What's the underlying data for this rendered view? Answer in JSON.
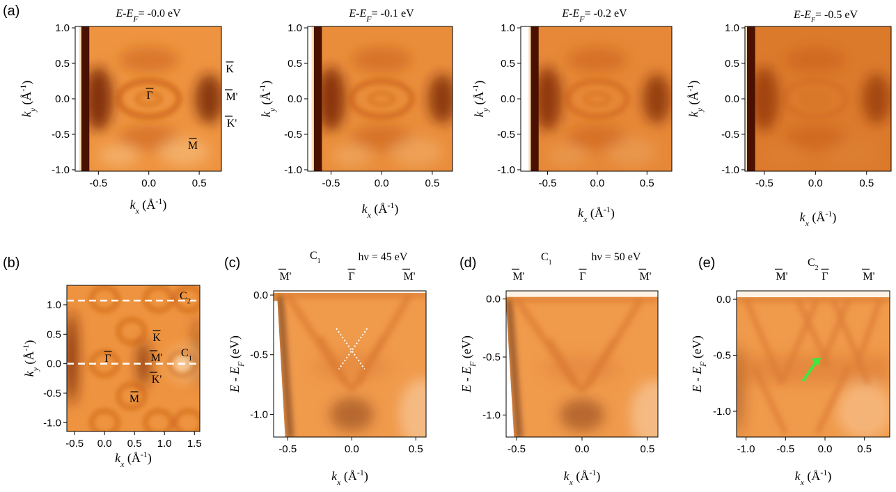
{
  "panel_labels": [
    "(a)",
    "(b)",
    "(c)",
    "(d)",
    "(e)"
  ],
  "chart_data": [
    {
      "type": "heatmap",
      "title": [
        "E",
        "-",
        "E",
        "F",
        "= -0.0 eV"
      ],
      "xlabel": [
        "k",
        "x",
        " (Å",
        "-1",
        ")"
      ],
      "ylabel": [
        "k",
        "y",
        " (Å",
        "-1",
        ")"
      ],
      "xlim": [
        -0.73,
        0.72
      ],
      "ylim": [
        -1.02,
        1.02
      ],
      "xticks": [
        -0.5,
        {
          "value": 0,
          "label": "0.0"
        },
        0.5
      ],
      "yticks": [
        {
          "value": -1,
          "label": "-1.0"
        },
        -0.5,
        {
          "value": 0,
          "label": "0.0"
        },
        0.5,
        {
          "value": 1,
          "label": "1.0"
        }
      ],
      "symmetry_points": [
        "Γ",
        "K",
        "M'",
        "K'",
        "M"
      ]
    },
    {
      "type": "heatmap",
      "title": [
        "E",
        "-",
        "E",
        "F",
        "= -0.1 eV"
      ],
      "xlabel": [
        "k",
        "x",
        " (Å",
        "-1",
        ")"
      ],
      "ylabel": [
        "k",
        "y",
        " (Å",
        "-1",
        ")"
      ],
      "xlim": [
        -0.73,
        0.7
      ],
      "ylim": [
        -1.02,
        1.02
      ],
      "xticks": [
        -0.5,
        {
          "value": 0,
          "label": "0.0"
        },
        0.5
      ],
      "yticks": [
        {
          "value": -1,
          "label": "-1.0"
        },
        -0.5,
        {
          "value": 0,
          "label": "0.0"
        },
        0.5,
        {
          "value": 1,
          "label": "1.0"
        }
      ]
    },
    {
      "type": "heatmap",
      "title": [
        "E",
        "-",
        "E",
        "F",
        "= -0.2 eV"
      ],
      "xlabel": [
        "k",
        "x",
        " (Å",
        "-1",
        ")"
      ],
      "ylabel": [
        "k",
        "y",
        " (Å",
        "-1",
        ")"
      ],
      "xlim": [
        -0.77,
        0.75
      ],
      "ylim": [
        -1.02,
        1.02
      ],
      "xticks": [
        -0.5,
        {
          "value": 0,
          "label": "0.0"
        },
        0.5
      ],
      "yticks": [
        {
          "value": -1,
          "label": "-1.0"
        },
        -0.5,
        {
          "value": 0,
          "label": "0.0"
        },
        0.5,
        {
          "value": 1,
          "label": "1.0"
        }
      ]
    },
    {
      "type": "heatmap",
      "title": [
        "E",
        "-",
        "E",
        "F",
        "= -0.5 eV"
      ],
      "xlabel": [
        "k",
        "x",
        " (Å",
        "-1",
        ")"
      ],
      "ylabel": [
        "k",
        "y",
        " (Å",
        "-1",
        ")"
      ],
      "xlim": [
        -0.69,
        0.74
      ],
      "ylim": [
        -1.02,
        1.02
      ],
      "xticks": [
        -0.5,
        {
          "value": 0,
          "label": "0.0"
        },
        0.5
      ],
      "yticks": [
        {
          "value": -1,
          "label": "-1.0"
        },
        -0.5,
        {
          "value": 0,
          "label": "0.0"
        },
        0.5,
        {
          "value": 1,
          "label": "1.0"
        }
      ]
    },
    {
      "type": "heatmap",
      "xlabel": [
        "k",
        "x",
        " (Å",
        "-1",
        ")"
      ],
      "ylabel": [
        "k",
        "y",
        " (Å",
        "-1",
        ")"
      ],
      "xlim": [
        -0.63,
        1.59
      ],
      "ylim": [
        -1.15,
        1.33
      ],
      "xticks": [
        -0.5,
        {
          "value": 0,
          "label": "0.0"
        },
        0.5,
        {
          "value": 1,
          "label": "1.0"
        },
        1.5
      ],
      "yticks": [
        {
          "value": -1,
          "label": "-1.0"
        },
        -0.5,
        {
          "value": 0,
          "label": "0.0"
        },
        0.5,
        {
          "value": 1,
          "label": "1.0"
        }
      ],
      "symmetry_points": [
        "Γ",
        "K",
        "M'",
        "K'",
        "M"
      ],
      "cuts": [
        {
          "name": [
            "C",
            "2"
          ],
          "ky": 1.07
        },
        {
          "name": [
            "C",
            "1"
          ],
          "ky": 0
        }
      ]
    },
    {
      "type": "heatmap",
      "cut": [
        "C",
        "1"
      ],
      "photon_energy": "hν = 45 eV",
      "xlabel": [
        "k",
        "x",
        " (Å",
        "-1",
        ")"
      ],
      "ylabel": [
        "E - E",
        "F",
        " (eV)"
      ],
      "xlim": [
        -0.61,
        0.58
      ],
      "ylim": [
        -1.19,
        0.035
      ],
      "xticks": [
        -0.5,
        {
          "value": 0,
          "label": "0.0"
        },
        0.5
      ],
      "yticks": [
        {
          "value": -1,
          "label": "-1.0"
        },
        -0.5,
        {
          "value": 0,
          "label": "0.0"
        }
      ],
      "symmetry_points": [
        "M'",
        "Γ",
        "M'"
      ]
    },
    {
      "type": "heatmap",
      "cut": [
        "C",
        "1"
      ],
      "photon_energy": "hν = 50 eV",
      "xlabel": [
        "k",
        "x",
        " (Å",
        "-1",
        ")"
      ],
      "ylabel": [
        "E - E",
        "F",
        " (eV)"
      ],
      "xlim": [
        -0.58,
        0.58
      ],
      "ylim": [
        -1.19,
        0.07
      ],
      "xticks": [
        -0.5,
        {
          "value": 0,
          "label": "0.0"
        },
        0.5
      ],
      "yticks": [
        {
          "value": -1,
          "label": "-1.0"
        },
        -0.5,
        {
          "value": 0,
          "label": "0.0"
        }
      ],
      "symmetry_points": [
        "M'",
        "Γ",
        "M'"
      ]
    },
    {
      "type": "heatmap",
      "cut": [
        "C",
        "2"
      ],
      "xlabel": [
        "k",
        "x",
        " (Å",
        "-1",
        ")"
      ],
      "ylabel": [
        "E - E",
        "F",
        " (eV)"
      ],
      "xlim": [
        -1.12,
        0.82
      ],
      "ylim": [
        -1.23,
        0.075
      ],
      "xticks": [
        {
          "value": -1,
          "label": "-1.0"
        },
        -0.5,
        {
          "value": 0,
          "label": "0.0"
        },
        0.5
      ],
      "yticks": [
        {
          "value": -1,
          "label": "-1.0"
        },
        -0.5,
        {
          "value": 0,
          "label": "0.0"
        }
      ],
      "symmetry_points": [
        "M'",
        "Γ",
        "M'"
      ]
    }
  ]
}
